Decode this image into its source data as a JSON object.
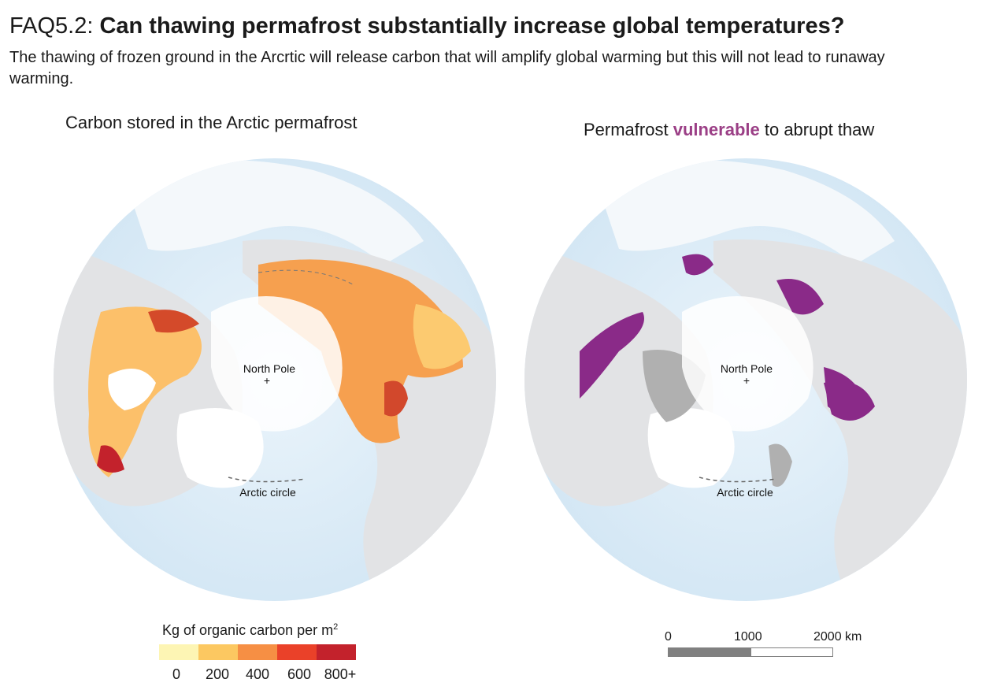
{
  "header": {
    "prefix": "FAQ5.2: ",
    "title": "Can thawing permafrost substantially increase global temperatures?",
    "subtitle": "The thawing of frozen ground in the Arcrtic will release carbon that will amplify global warming but this will not lead to runaway warming."
  },
  "left_panel": {
    "title": "Carbon stored in the Arctic permafrost",
    "north_pole_label": "North Pole",
    "arctic_circle_label": "Arctic circle"
  },
  "right_panel": {
    "title_before": "Permafrost ",
    "title_highlight": "vulnerable",
    "title_after": " to abrupt thaw",
    "north_pole_label": "North Pole",
    "arctic_circle_label": "Arctic circle"
  },
  "legend": {
    "title": "Kg of organic carbon per m",
    "title_superscript": "2",
    "swatches": [
      "#fdf5b4",
      "#fcc861",
      "#f68f44",
      "#ea4129",
      "#c3222c"
    ],
    "ticks": [
      "0",
      "200",
      "400",
      "600",
      "800+"
    ]
  },
  "scalebar": {
    "ticks": [
      "0",
      "1000",
      "2000 km"
    ]
  },
  "colors": {
    "ocean": "#d6e9f5",
    "land": "#e2e3e5",
    "ice": "#ffffff",
    "vulnerable": "#8a2a88",
    "other_permafrost": "#b0b0b0",
    "highlight_text": "#9b3f86"
  }
}
